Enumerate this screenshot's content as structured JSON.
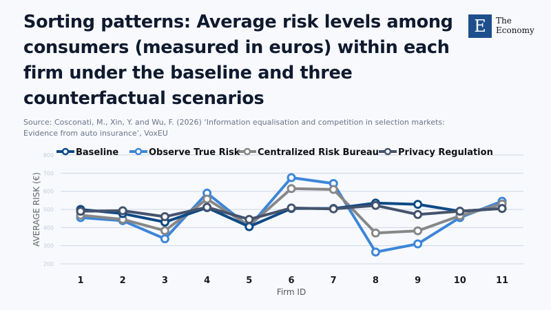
{
  "title": "Sorting patterns: Average risk levels among consumers (measured in euros) within each firm under the baseline and three counterfactual scenarios",
  "source": "Source: Cosconati, M., Xin, Y. and Wu, F. (2026) ‘Information equalisation and competition in selection markets: Evidence from auto insurance’, VoxEU",
  "logo": {
    "letter": "E",
    "line1": "The",
    "line2": "Economy"
  },
  "chart_data": {
    "type": "line",
    "xlabel": "Firm ID",
    "ylabel": "AVERAGE RISK (€)",
    "x": [
      "1",
      "2",
      "3",
      "4",
      "5",
      "6",
      "7",
      "8",
      "9",
      "10",
      "11"
    ],
    "ylim": [
      200,
      800
    ],
    "yticks": [
      "200",
      "300",
      "400",
      "500",
      "600",
      "700",
      "800"
    ],
    "grid": true,
    "legend_position": "top",
    "series": [
      {
        "name": "Baseline",
        "color": "#0d4a86",
        "values": [
          500,
          477,
          430,
          510,
          405,
          505,
          505,
          535,
          528,
          490,
          505
        ]
      },
      {
        "name": "Observe True Risk",
        "color": "#3d86d8",
        "values": [
          455,
          438,
          338,
          590,
          405,
          675,
          643,
          265,
          310,
          455,
          545
        ]
      },
      {
        "name": "Centralized Risk Bureau",
        "color": "#878787",
        "values": [
          468,
          445,
          383,
          557,
          410,
          615,
          610,
          370,
          382,
          465,
          530
        ]
      },
      {
        "name": "Privacy Regulation",
        "color": "#45536d",
        "values": [
          490,
          493,
          460,
          512,
          445,
          508,
          503,
          522,
          472,
          490,
          505
        ]
      }
    ]
  }
}
